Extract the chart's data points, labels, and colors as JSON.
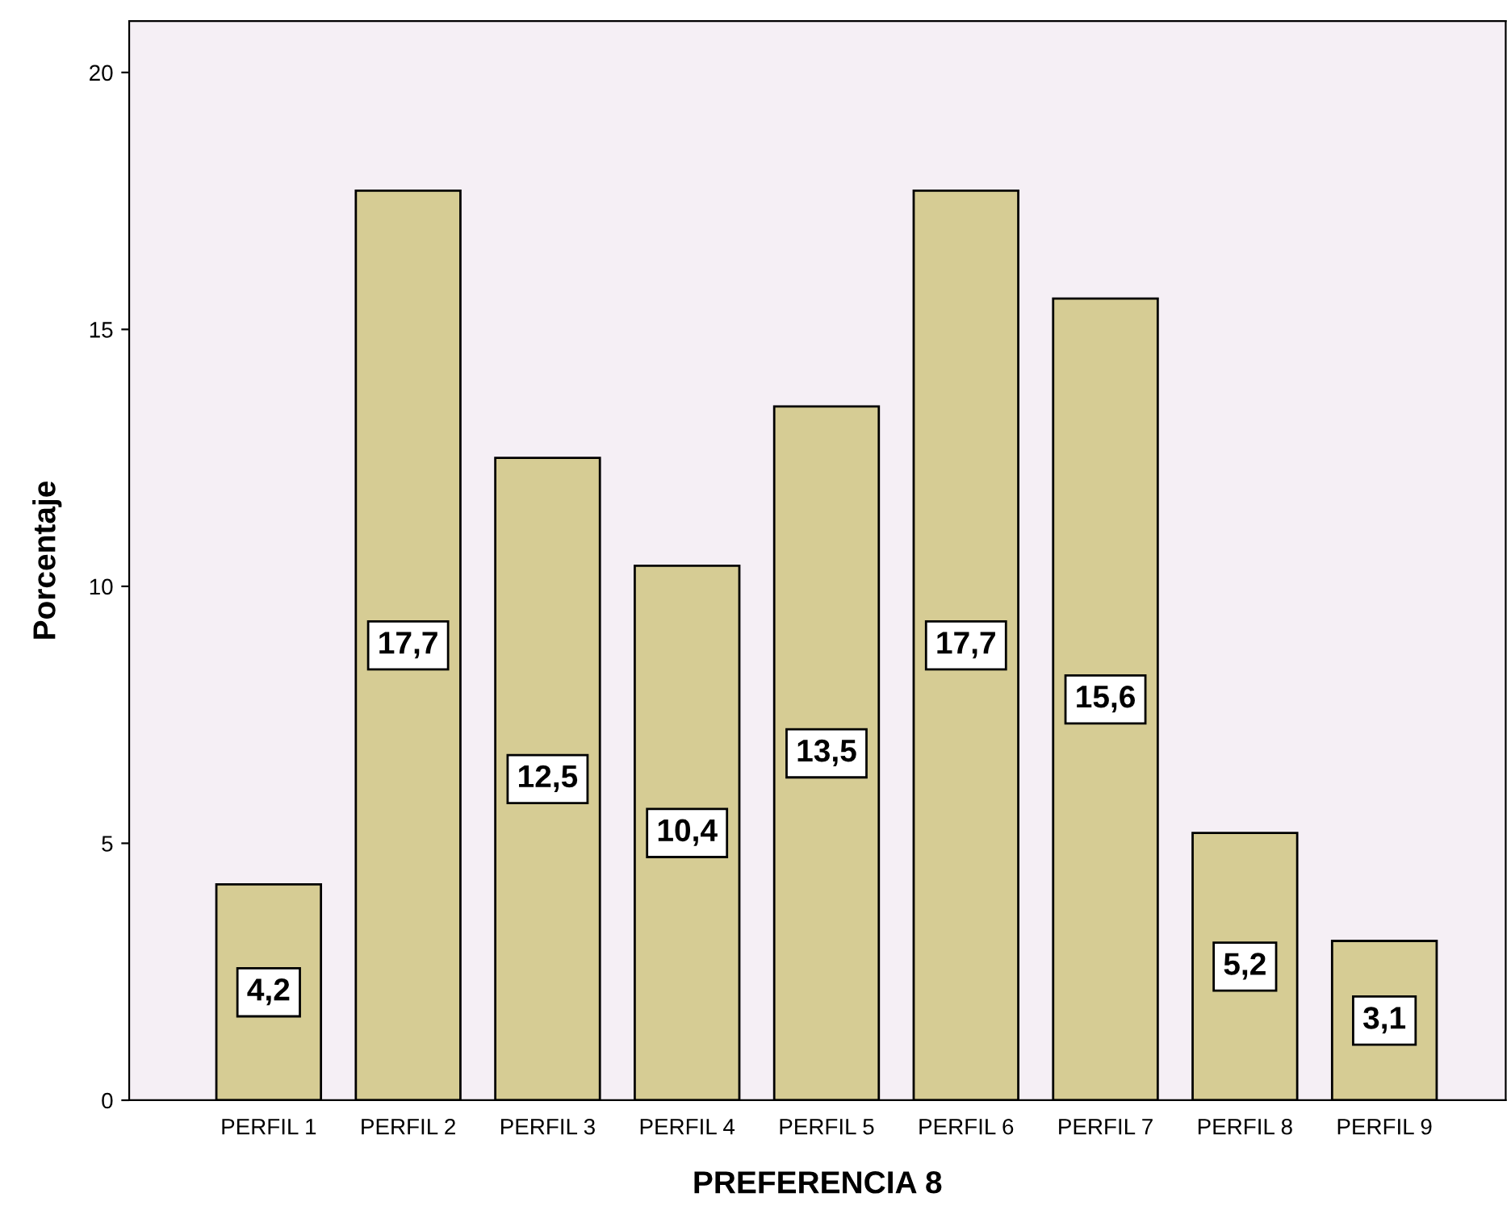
{
  "chart_data": {
    "type": "bar",
    "xlabel": "PREFERENCIA 8",
    "ylabel": "Porcentaje",
    "categories": [
      "PERFIL 1",
      "PERFIL 2",
      "PERFIL 3",
      "PERFIL 4",
      "PERFIL 5",
      "PERFIL 6",
      "PERFIL 7",
      "PERFIL 8",
      "PERFIL 9"
    ],
    "values": [
      4.2,
      17.7,
      12.5,
      10.4,
      13.5,
      17.7,
      15.6,
      5.2,
      3.1
    ],
    "value_labels": [
      "4,2",
      "17,7",
      "12,5",
      "10,4",
      "13,5",
      "17,7",
      "15,6",
      "5,2",
      "3,1"
    ],
    "color": "#d6cc94",
    "ylim": [
      0,
      21
    ],
    "yticks": [
      0,
      5,
      10,
      15,
      20
    ],
    "grid": false,
    "legend": false
  }
}
